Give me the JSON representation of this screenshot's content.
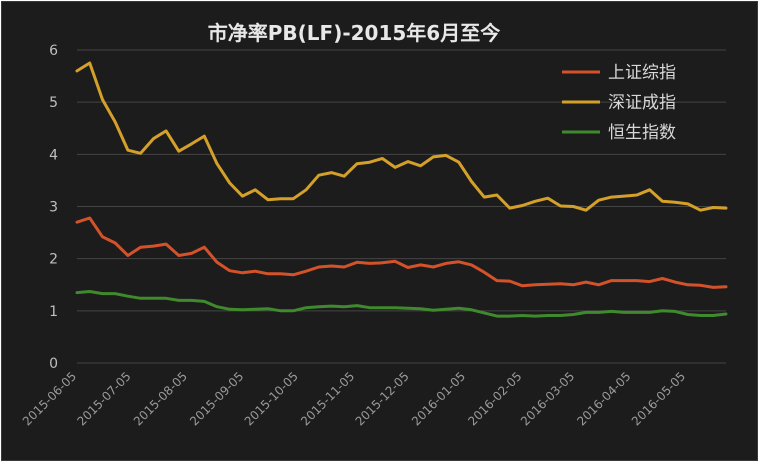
{
  "chart_data": {
    "type": "line",
    "title": "市净率PB(LF)-2015年6月至今",
    "ylim": [
      0,
      6
    ],
    "yticks": [
      "0",
      "1",
      "2",
      "3",
      "4",
      "5",
      "6"
    ],
    "grid": true,
    "legend_position": "top-right",
    "x_tick_labels": [
      "2015-06-05",
      "2015-07-05",
      "2015-08-05",
      "2015-09-05",
      "2015-10-05",
      "2015-11-05",
      "2015-12-05",
      "2016-01-05",
      "2016-02-05",
      "2016-03-05",
      "2016-04-05",
      "2016-05-05"
    ],
    "x_start": "2015-06-05",
    "x_end": "2016-05-27",
    "series": [
      {
        "name": "上证综指",
        "color": "#d4522a",
        "points": [
          [
            "2015-06-05",
            2.7
          ],
          [
            "2015-06-12",
            2.78
          ],
          [
            "2015-06-19",
            2.42
          ],
          [
            "2015-06-26",
            2.3
          ],
          [
            "2015-07-03",
            2.06
          ],
          [
            "2015-07-10",
            2.22
          ],
          [
            "2015-07-17",
            2.24
          ],
          [
            "2015-07-24",
            2.28
          ],
          [
            "2015-07-31",
            2.06
          ],
          [
            "2015-08-07",
            2.1
          ],
          [
            "2015-08-14",
            2.22
          ],
          [
            "2015-08-21",
            1.93
          ],
          [
            "2015-08-28",
            1.77
          ],
          [
            "2015-09-04",
            1.73
          ],
          [
            "2015-09-11",
            1.76
          ],
          [
            "2015-09-18",
            1.71
          ],
          [
            "2015-09-25",
            1.71
          ],
          [
            "2015-10-02",
            1.69
          ],
          [
            "2015-10-09",
            1.76
          ],
          [
            "2015-10-16",
            1.84
          ],
          [
            "2015-10-23",
            1.86
          ],
          [
            "2015-10-30",
            1.84
          ],
          [
            "2015-11-06",
            1.93
          ],
          [
            "2015-11-13",
            1.91
          ],
          [
            "2015-11-20",
            1.92
          ],
          [
            "2015-11-27",
            1.95
          ],
          [
            "2015-12-04",
            1.83
          ],
          [
            "2015-12-11",
            1.88
          ],
          [
            "2015-12-18",
            1.84
          ],
          [
            "2015-12-25",
            1.91
          ],
          [
            "2016-01-01",
            1.94
          ],
          [
            "2016-01-08",
            1.88
          ],
          [
            "2016-01-15",
            1.74
          ],
          [
            "2016-01-22",
            1.58
          ],
          [
            "2016-01-29",
            1.57
          ],
          [
            "2016-02-05",
            1.48
          ],
          [
            "2016-02-12",
            1.5
          ],
          [
            "2016-02-19",
            1.51
          ],
          [
            "2016-02-26",
            1.52
          ],
          [
            "2016-03-04",
            1.5
          ],
          [
            "2016-03-11",
            1.55
          ],
          [
            "2016-03-18",
            1.5
          ],
          [
            "2016-03-25",
            1.58
          ],
          [
            "2016-04-01",
            1.58
          ],
          [
            "2016-04-08",
            1.58
          ],
          [
            "2016-04-15",
            1.56
          ],
          [
            "2016-04-22",
            1.62
          ],
          [
            "2016-04-29",
            1.55
          ],
          [
            "2016-05-06",
            1.5
          ],
          [
            "2016-05-13",
            1.49
          ],
          [
            "2016-05-20",
            1.45
          ],
          [
            "2016-05-27",
            1.46
          ]
        ]
      },
      {
        "name": "深证成指",
        "color": "#d4a02a",
        "points": [
          [
            "2015-06-05",
            5.6
          ],
          [
            "2015-06-12",
            5.75
          ],
          [
            "2015-06-19",
            5.05
          ],
          [
            "2015-06-26",
            4.62
          ],
          [
            "2015-07-03",
            4.08
          ],
          [
            "2015-07-10",
            4.02
          ],
          [
            "2015-07-17",
            4.3
          ],
          [
            "2015-07-24",
            4.45
          ],
          [
            "2015-07-31",
            4.06
          ],
          [
            "2015-08-07",
            4.2
          ],
          [
            "2015-08-14",
            4.35
          ],
          [
            "2015-08-21",
            3.82
          ],
          [
            "2015-08-28",
            3.45
          ],
          [
            "2015-09-04",
            3.2
          ],
          [
            "2015-09-11",
            3.32
          ],
          [
            "2015-09-18",
            3.13
          ],
          [
            "2015-09-25",
            3.15
          ],
          [
            "2015-10-02",
            3.15
          ],
          [
            "2015-10-09",
            3.32
          ],
          [
            "2015-10-16",
            3.6
          ],
          [
            "2015-10-23",
            3.65
          ],
          [
            "2015-10-30",
            3.58
          ],
          [
            "2015-11-06",
            3.82
          ],
          [
            "2015-11-13",
            3.85
          ],
          [
            "2015-11-20",
            3.92
          ],
          [
            "2015-11-27",
            3.75
          ],
          [
            "2015-12-04",
            3.86
          ],
          [
            "2015-12-11",
            3.78
          ],
          [
            "2015-12-18",
            3.95
          ],
          [
            "2015-12-25",
            3.98
          ],
          [
            "2016-01-01",
            3.85
          ],
          [
            "2016-01-08",
            3.48
          ],
          [
            "2016-01-15",
            3.18
          ],
          [
            "2016-01-22",
            3.22
          ],
          [
            "2016-01-29",
            2.97
          ],
          [
            "2016-02-05",
            3.02
          ],
          [
            "2016-02-12",
            3.1
          ],
          [
            "2016-02-19",
            3.16
          ],
          [
            "2016-02-26",
            3.01
          ],
          [
            "2016-03-04",
            3.0
          ],
          [
            "2016-03-11",
            2.93
          ],
          [
            "2016-03-18",
            3.12
          ],
          [
            "2016-03-25",
            3.18
          ],
          [
            "2016-04-01",
            3.2
          ],
          [
            "2016-04-08",
            3.22
          ],
          [
            "2016-04-15",
            3.32
          ],
          [
            "2016-04-22",
            3.1
          ],
          [
            "2016-04-29",
            3.08
          ],
          [
            "2016-05-06",
            3.05
          ],
          [
            "2016-05-13",
            2.93
          ],
          [
            "2016-05-20",
            2.98
          ],
          [
            "2016-05-27",
            2.97
          ]
        ]
      },
      {
        "name": "恒生指数",
        "color": "#3f8a2c",
        "points": [
          [
            "2015-06-05",
            1.35
          ],
          [
            "2015-06-12",
            1.37
          ],
          [
            "2015-06-19",
            1.33
          ],
          [
            "2015-06-26",
            1.33
          ],
          [
            "2015-07-03",
            1.28
          ],
          [
            "2015-07-10",
            1.24
          ],
          [
            "2015-07-17",
            1.24
          ],
          [
            "2015-07-24",
            1.24
          ],
          [
            "2015-07-31",
            1.2
          ],
          [
            "2015-08-07",
            1.2
          ],
          [
            "2015-08-14",
            1.18
          ],
          [
            "2015-08-21",
            1.08
          ],
          [
            "2015-08-28",
            1.03
          ],
          [
            "2015-09-04",
            1.02
          ],
          [
            "2015-09-11",
            1.03
          ],
          [
            "2015-09-18",
            1.04
          ],
          [
            "2015-09-25",
            1.0
          ],
          [
            "2015-10-02",
            1.0
          ],
          [
            "2015-10-09",
            1.06
          ],
          [
            "2015-10-16",
            1.08
          ],
          [
            "2015-10-23",
            1.09
          ],
          [
            "2015-10-30",
            1.08
          ],
          [
            "2015-11-06",
            1.1
          ],
          [
            "2015-11-13",
            1.06
          ],
          [
            "2015-11-20",
            1.06
          ],
          [
            "2015-11-27",
            1.06
          ],
          [
            "2015-12-04",
            1.05
          ],
          [
            "2015-12-11",
            1.04
          ],
          [
            "2015-12-18",
            1.01
          ],
          [
            "2015-12-25",
            1.03
          ],
          [
            "2016-01-01",
            1.05
          ],
          [
            "2016-01-08",
            1.02
          ],
          [
            "2016-01-15",
            0.96
          ],
          [
            "2016-01-22",
            0.9
          ],
          [
            "2016-01-29",
            0.9
          ],
          [
            "2016-02-05",
            0.91
          ],
          [
            "2016-02-12",
            0.9
          ],
          [
            "2016-02-19",
            0.91
          ],
          [
            "2016-02-26",
            0.91
          ],
          [
            "2016-03-04",
            0.93
          ],
          [
            "2016-03-11",
            0.97
          ],
          [
            "2016-03-18",
            0.97
          ],
          [
            "2016-03-25",
            0.99
          ],
          [
            "2016-04-01",
            0.97
          ],
          [
            "2016-04-08",
            0.97
          ],
          [
            "2016-04-15",
            0.97
          ],
          [
            "2016-04-22",
            1.0
          ],
          [
            "2016-04-29",
            0.99
          ],
          [
            "2016-05-06",
            0.93
          ],
          [
            "2016-05-13",
            0.91
          ],
          [
            "2016-05-20",
            0.91
          ],
          [
            "2016-05-27",
            0.94
          ]
        ]
      }
    ]
  }
}
